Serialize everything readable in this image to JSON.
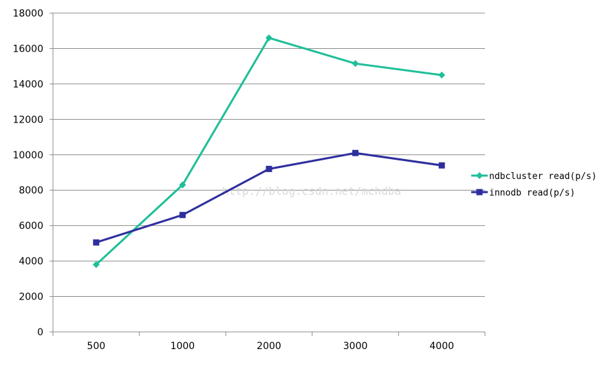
{
  "watermark": "http://blog.csdn.net/mchdba",
  "chart_data": {
    "type": "line",
    "categories": [
      "500",
      "1000",
      "2000",
      "3000",
      "4000"
    ],
    "ylim": [
      0,
      18000
    ],
    "yticks": [
      0,
      2000,
      4000,
      6000,
      8000,
      10000,
      12000,
      14000,
      16000,
      18000
    ],
    "grid": true,
    "legend_position": "right",
    "series": [
      {
        "name": "ndbcluster read(p/s)",
        "values": [
          3800,
          8300,
          16600,
          15150,
          14500
        ],
        "color": "#1fbf99",
        "marker": "diamond"
      },
      {
        "name": "innodb read(p/s)",
        "values": [
          5050,
          6600,
          9200,
          10100,
          9400
        ],
        "color": "#2e2e9e",
        "marker": "square"
      }
    ]
  }
}
